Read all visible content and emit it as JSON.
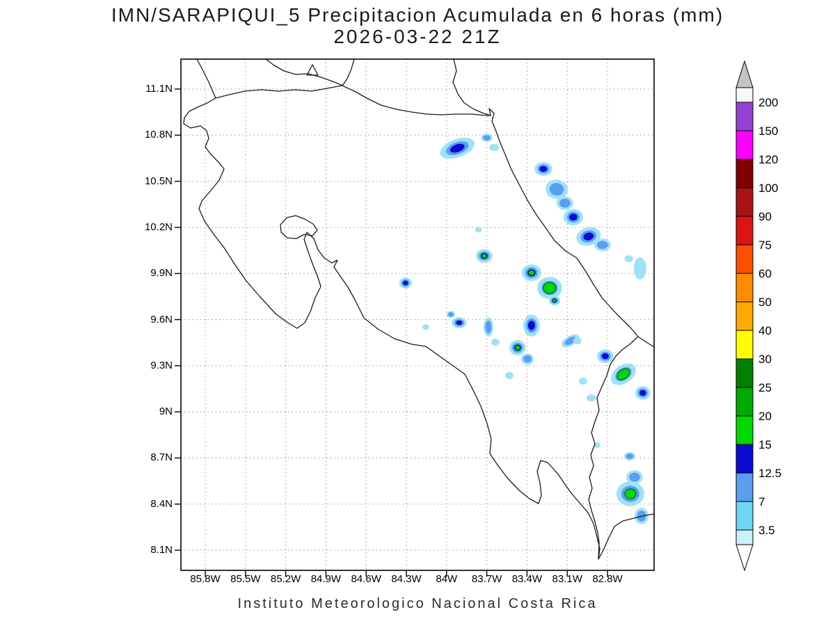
{
  "title": {
    "line1": "IMN/SARAPIQUI_5 Precipitacion Acumulada en 6 horas (mm)",
    "line2": "2026-03-22 21Z"
  },
  "footer": "Instituto Meteorologico Nacional Costa Rica",
  "axes": {
    "lat_labels": [
      "11.1N",
      "10.8N",
      "10.5N",
      "10.2N",
      "9.9N",
      "9.6N",
      "9.3N",
      "9N",
      "8.7N",
      "8.4N",
      "8.1N"
    ],
    "lon_labels": [
      "85.8W",
      "85.5W",
      "85.2W",
      "84.9W",
      "84.6W",
      "84.3W",
      "84W",
      "83.7W",
      "83.4W",
      "83.1W",
      "82.8W"
    ]
  },
  "chart_data": {
    "type": "heatmap",
    "subtype": "filled-contour precipitation map (GrADS style)",
    "title": "IMN/SARAPIQUI_5 Precipitacion Acumulada en 6 horas (mm)",
    "valid_time": "2026-03-22 21Z",
    "units": "mm",
    "region": "Costa Rica",
    "grid": "dotted",
    "x_axis": {
      "label": "longitude",
      "tick_labels": [
        "85.8W",
        "85.5W",
        "85.2W",
        "84.9W",
        "84.6W",
        "84.3W",
        "84W",
        "83.7W",
        "83.4W",
        "83.1W",
        "82.8W"
      ],
      "range_deg_west": [
        85.98,
        82.45
      ]
    },
    "y_axis": {
      "label": "latitude",
      "tick_labels": [
        "11.1N",
        "10.8N",
        "10.5N",
        "10.2N",
        "9.9N",
        "9.6N",
        "9.3N",
        "9N",
        "8.7N",
        "8.4N",
        "8.1N"
      ],
      "range_deg_north": [
        7.97,
        11.3
      ]
    },
    "contour_levels_mm": [
      3.5,
      7,
      12.5,
      15,
      20,
      25,
      30,
      40,
      50,
      60,
      75,
      90,
      100,
      120,
      150,
      200
    ],
    "level_colors": [
      "#9fe2f5",
      "#5a9ef0",
      "#0a0ad0",
      "#00d800"
    ],
    "colorbar": {
      "arrow_top_color": "#c4c4c4",
      "arrow_bottom_color": "#ffffff",
      "segment_colors": [
        "#f7f7f7",
        "#9440d4",
        "#ff00ff",
        "#800000",
        "#a81414",
        "#dc1414",
        "#ff5000",
        "#ff8c00",
        "#ffaa00",
        "#ffff00",
        "#008000",
        "#00aa00",
        "#00d800",
        "#0a0ad0",
        "#5a9ef0",
        "#6fd5f2",
        "#c9f2f8"
      ],
      "boundary_labels": [
        "200",
        "150",
        "120",
        "100",
        "90",
        "75",
        "60",
        "50",
        "40",
        "30",
        "25",
        "20",
        "15",
        "12.5",
        "7",
        "3.5"
      ]
    },
    "precip_cells": [
      {
        "lon_w": 83.92,
        "lat_n": 10.715,
        "rx_deg": 0.135,
        "ry_deg": 0.059,
        "rot_deg": -20,
        "level": 3,
        "max_mm": 14
      },
      {
        "lon_w": 83.7,
        "lat_n": 10.783,
        "rx_deg": 0.042,
        "ry_deg": 0.027,
        "rot_deg": 0,
        "level": 2,
        "max_mm": 10
      },
      {
        "lon_w": 83.647,
        "lat_n": 10.72,
        "rx_deg": 0.036,
        "ry_deg": 0.023,
        "rot_deg": 0,
        "level": 1,
        "max_mm": 5
      },
      {
        "lon_w": 83.278,
        "lat_n": 10.58,
        "rx_deg": 0.067,
        "ry_deg": 0.045,
        "rot_deg": 0,
        "level": 3,
        "max_mm": 14
      },
      {
        "lon_w": 83.179,
        "lat_n": 10.448,
        "rx_deg": 0.083,
        "ry_deg": 0.063,
        "rot_deg": 10,
        "level": 2,
        "max_mm": 10
      },
      {
        "lon_w": 83.117,
        "lat_n": 10.358,
        "rx_deg": 0.062,
        "ry_deg": 0.045,
        "rot_deg": 0,
        "level": 2,
        "max_mm": 10
      },
      {
        "lon_w": 83.055,
        "lat_n": 10.267,
        "rx_deg": 0.073,
        "ry_deg": 0.054,
        "rot_deg": 0,
        "level": 3,
        "max_mm": 14
      },
      {
        "lon_w": 82.941,
        "lat_n": 10.141,
        "rx_deg": 0.093,
        "ry_deg": 0.059,
        "rot_deg": -15,
        "level": 3,
        "max_mm": 14
      },
      {
        "lon_w": 82.837,
        "lat_n": 10.086,
        "rx_deg": 0.062,
        "ry_deg": 0.041,
        "rot_deg": 0,
        "level": 2,
        "max_mm": 10
      },
      {
        "lon_w": 82.557,
        "lat_n": 9.933,
        "rx_deg": 0.047,
        "ry_deg": 0.072,
        "rot_deg": 0,
        "level": 1,
        "max_mm": 5
      },
      {
        "lon_w": 82.64,
        "lat_n": 9.996,
        "rx_deg": 0.031,
        "ry_deg": 0.023,
        "rot_deg": 0,
        "level": 1,
        "max_mm": 5
      },
      {
        "lon_w": 83.719,
        "lat_n": 10.014,
        "rx_deg": 0.062,
        "ry_deg": 0.045,
        "rot_deg": 0,
        "level": 4,
        "max_mm": 20
      },
      {
        "lon_w": 83.366,
        "lat_n": 9.905,
        "rx_deg": 0.073,
        "ry_deg": 0.054,
        "rot_deg": 0,
        "level": 4,
        "max_mm": 20
      },
      {
        "lon_w": 83.231,
        "lat_n": 9.806,
        "rx_deg": 0.093,
        "ry_deg": 0.072,
        "rot_deg": 0,
        "level": 4,
        "core": 0.5,
        "max_mm": 28
      },
      {
        "lon_w": 83.195,
        "lat_n": 9.724,
        "rx_deg": 0.042,
        "ry_deg": 0.032,
        "rot_deg": 0,
        "level": 4,
        "max_mm": 20
      },
      {
        "lon_w": 84.306,
        "lat_n": 9.838,
        "rx_deg": 0.047,
        "ry_deg": 0.036,
        "rot_deg": 0,
        "level": 3,
        "max_mm": 14
      },
      {
        "lon_w": 83.906,
        "lat_n": 9.58,
        "rx_deg": 0.057,
        "ry_deg": 0.036,
        "rot_deg": 0,
        "level": 3,
        "max_mm": 14
      },
      {
        "lon_w": 83.688,
        "lat_n": 9.552,
        "rx_deg": 0.036,
        "ry_deg": 0.063,
        "rot_deg": 0,
        "level": 2,
        "max_mm": 10
      },
      {
        "lon_w": 83.636,
        "lat_n": 9.453,
        "rx_deg": 0.031,
        "ry_deg": 0.023,
        "rot_deg": 0,
        "level": 1,
        "max_mm": 5
      },
      {
        "lon_w": 83.366,
        "lat_n": 9.562,
        "rx_deg": 0.062,
        "ry_deg": 0.072,
        "rot_deg": 0,
        "level": 3,
        "max_mm": 14
      },
      {
        "lon_w": 83.47,
        "lat_n": 9.417,
        "rx_deg": 0.062,
        "ry_deg": 0.05,
        "rot_deg": 0,
        "level": 4,
        "max_mm": 20
      },
      {
        "lon_w": 83.397,
        "lat_n": 9.344,
        "rx_deg": 0.047,
        "ry_deg": 0.036,
        "rot_deg": 0,
        "level": 2,
        "max_mm": 10
      },
      {
        "lon_w": 83.076,
        "lat_n": 9.462,
        "rx_deg": 0.073,
        "ry_deg": 0.032,
        "rot_deg": -30,
        "level": 2,
        "max_mm": 10
      },
      {
        "lon_w": 82.816,
        "lat_n": 9.362,
        "rx_deg": 0.062,
        "ry_deg": 0.045,
        "rot_deg": 0,
        "level": 3,
        "max_mm": 14
      },
      {
        "lon_w": 82.681,
        "lat_n": 9.245,
        "rx_deg": 0.104,
        "ry_deg": 0.059,
        "rot_deg": -35,
        "level": 4,
        "core": 0.5,
        "max_mm": 28
      },
      {
        "lon_w": 82.536,
        "lat_n": 9.123,
        "rx_deg": 0.057,
        "ry_deg": 0.045,
        "rot_deg": 0,
        "level": 3,
        "max_mm": 14
      },
      {
        "lon_w": 82.92,
        "lat_n": 9.091,
        "rx_deg": 0.036,
        "ry_deg": 0.023,
        "rot_deg": 0,
        "level": 1,
        "max_mm": 5
      },
      {
        "lon_w": 82.982,
        "lat_n": 9.2,
        "rx_deg": 0.031,
        "ry_deg": 0.023,
        "rot_deg": 0,
        "level": 1,
        "max_mm": 5
      },
      {
        "lon_w": 82.634,
        "lat_n": 8.711,
        "rx_deg": 0.042,
        "ry_deg": 0.027,
        "rot_deg": 0,
        "level": 2,
        "max_mm": 10
      },
      {
        "lon_w": 82.598,
        "lat_n": 8.575,
        "rx_deg": 0.062,
        "ry_deg": 0.045,
        "rot_deg": 0,
        "level": 2,
        "max_mm": 10
      },
      {
        "lon_w": 82.629,
        "lat_n": 8.467,
        "rx_deg": 0.104,
        "ry_deg": 0.081,
        "rot_deg": 0,
        "level": 4,
        "core": 0.4,
        "max_mm": 25
      },
      {
        "lon_w": 82.546,
        "lat_n": 8.322,
        "rx_deg": 0.052,
        "ry_deg": 0.054,
        "rot_deg": 0,
        "level": 2,
        "max_mm": 10
      },
      {
        "lon_w": 82.878,
        "lat_n": 8.783,
        "rx_deg": 0.026,
        "ry_deg": 0.018,
        "rot_deg": 0,
        "level": 1,
        "max_mm": 5
      },
      {
        "lon_w": 83.761,
        "lat_n": 10.186,
        "rx_deg": 0.026,
        "ry_deg": 0.018,
        "rot_deg": 0,
        "level": 1,
        "max_mm": 5
      },
      {
        "lon_w": 84.155,
        "lat_n": 9.552,
        "rx_deg": 0.026,
        "ry_deg": 0.018,
        "rot_deg": 0,
        "level": 1,
        "max_mm": 5
      },
      {
        "lon_w": 83.968,
        "lat_n": 9.634,
        "rx_deg": 0.031,
        "ry_deg": 0.023,
        "rot_deg": 0,
        "level": 2,
        "max_mm": 10
      },
      {
        "lon_w": 83.532,
        "lat_n": 9.236,
        "rx_deg": 0.031,
        "ry_deg": 0.023,
        "rot_deg": 0,
        "level": 1,
        "max_mm": 5
      },
      {
        "lon_w": 83.024,
        "lat_n": 9.462,
        "rx_deg": 0.031,
        "ry_deg": 0.023,
        "rot_deg": 0,
        "level": 1,
        "max_mm": 5
      }
    ]
  },
  "map_outline": {
    "paths": [
      "M 283,85 L 292,102 L 300,118 L 306,132 L 310,141 L 298,148 L 284,154 L 272,160 L 265,169 L 264,178 L 274,184 L 288,181 L 297,188 L 300,199 L 295,211 L 303,222 L 314,233 L 322,243 L 315,259 L 303,274 L 290,289 L 286,300 L 294,318 L 308,338 L 322,356 L 338,381 L 354,404 L 374,427 L 396,451 L 412,463 L 427,472 L 438,464 L 446,448 L 453,428 L 461,412 L 456,396 L 449,379 L 443,362 L 437,344 L 441,334 L 451,343 L 457,359 L 466,371 L 477,378 L 485,374 L 480,384 L 489,397 L 500,413 L 509,429 L 517,445 L 523,457 L 543,473 L 567,487 L 592,495 L 612,498 L 633,513 L 654,528 L 668,538 L 679,559 L 691,584 L 700,609 L 706,631 L 704,652 L 714,667 L 729,687 L 746,705 L 761,717 L 774,724 L 778,712 L 776,694 L 772,678 L 777,662 L 787,665 L 797,676 L 803,683 L 811,695 L 821,709 L 833,723 L 845,737 L 853,753 L 858,772 L 862,789 L 860,804 L 867,791 L 875,773 L 883,757 L 895,749 L 911,745 L 927,741 L 940,739",
      "M 652,85 L 656,102 L 651,118 L 658,135 L 667,148 L 681,157 L 695,163 L 705,166 L 703,156 L 710,163 L 707,174 L 713,189 L 720,208 L 728,227 L 735,244 L 745,263 L 757,286 L 769,306 L 783,326 L 797,346 L 813,361 L 829,371 L 841,389 L 853,409 L 865,428 L 874,438 L 882,447 L 894,459 L 906,471 L 917,484 L 929,492 L 940,499",
      "M 917,484 L 905,495 L 894,503 L 885,512 L 877,524 L 872,540 L 865,556 L 858,572 L 861,590 L 855,606 L 850,622 L 855,638 L 849,654 L 853,670 L 847,686 L 851,702 L 846,718 L 850,734 L 855,750 L 859,766 L 861,780 L 860,804",
      "M 310,141 L 330,136 L 352,131 L 376,129 L 400,131 L 424,129 L 448,131 L 470,127 L 492,123 L 509,131 L 527,141 L 547,151 L 569,157 L 591,161 L 613,164 L 635,165 L 657,164 L 678,164 L 697,166 L 705,166",
      "M 382,85 L 394,94 L 408,102 L 425,107 L 443,106 L 461,111 L 478,117 L 492,123 L 499,113 L 505,99 L 509,85",
      "M 441,108 L 449,93 L 457,108 Z",
      "M 403,323 L 412,313 L 425,310 L 438,315 L 450,322 L 456,331 L 449,339 L 437,337 L 426,343 L 413,342 L 404,334 Z"
    ]
  }
}
